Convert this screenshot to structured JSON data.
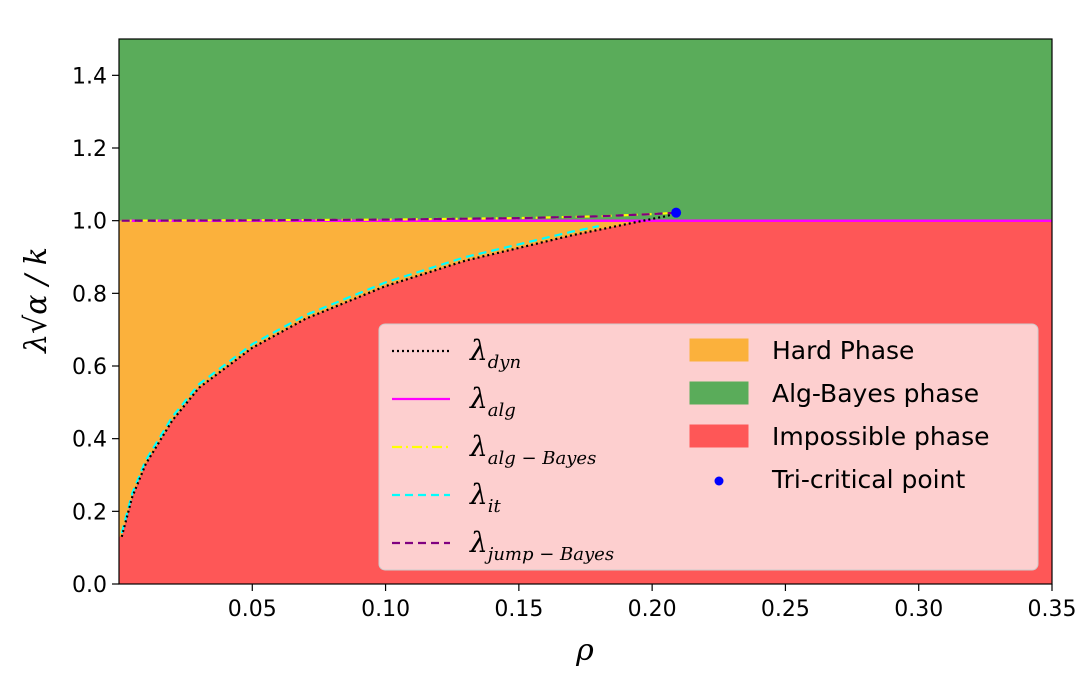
{
  "chart_data": {
    "type": "area",
    "xlabel": "ρ",
    "ylabel": "λ√α / k",
    "xlim": [
      0.0,
      0.35
    ],
    "ylim": [
      0.0,
      1.5
    ],
    "x_ticks": [
      "0.05",
      "0.10",
      "0.15",
      "0.20",
      "0.25",
      "0.30",
      "0.35"
    ],
    "y_ticks": [
      "0.0",
      "0.2",
      "0.4",
      "0.6",
      "0.8",
      "1.0",
      "1.2",
      "1.4"
    ],
    "legend_position": "lower-right",
    "regions": [
      {
        "name": "Hard Phase",
        "color": "#fbb13c"
      },
      {
        "name": "Alg-Bayes phase",
        "color": "#5aac5a"
      },
      {
        "name": "Impossible phase",
        "color": "#fe5757"
      }
    ],
    "series": [
      {
        "name": "λ",
        "subscript": "dyn",
        "style": "dotted",
        "color": "#000000",
        "x": [
          0.001,
          0.005,
          0.01,
          0.02,
          0.03,
          0.05,
          0.07,
          0.1,
          0.13,
          0.15,
          0.17,
          0.19,
          0.2,
          0.205,
          0.209
        ],
        "y": [
          0.13,
          0.24,
          0.33,
          0.45,
          0.54,
          0.65,
          0.73,
          0.82,
          0.89,
          0.925,
          0.96,
          0.99,
          1.005,
          1.012,
          1.02
        ]
      },
      {
        "name": "λ",
        "subscript": "alg",
        "style": "solid",
        "color": "#ff00ff",
        "x": [
          0.001,
          0.35
        ],
        "y": [
          1.0,
          1.0
        ]
      },
      {
        "name": "λ",
        "subscript": "alg − Bayes",
        "style": "dashdot",
        "color": "#ffff00",
        "x": [
          0.001,
          0.05,
          0.1,
          0.15,
          0.18,
          0.2,
          0.209
        ],
        "y": [
          1.0,
          1.001,
          1.003,
          1.007,
          1.012,
          1.018,
          1.022
        ]
      },
      {
        "name": "λ",
        "subscript": "it",
        "style": "dashed",
        "color": "#00ffff",
        "x": [
          0.001,
          0.005,
          0.01,
          0.02,
          0.03,
          0.05,
          0.07,
          0.1,
          0.13,
          0.15,
          0.17,
          0.18
        ],
        "y": [
          0.14,
          0.25,
          0.34,
          0.46,
          0.55,
          0.66,
          0.74,
          0.83,
          0.9,
          0.935,
          0.97,
          0.985
        ]
      },
      {
        "name": "λ",
        "subscript": "jump − Bayes",
        "style": "dashed",
        "color": "#800080",
        "x": [
          0.001,
          0.05,
          0.1,
          0.15,
          0.18,
          0.2,
          0.209
        ],
        "y": [
          1.0,
          1.001,
          1.003,
          1.007,
          1.012,
          1.018,
          1.022
        ]
      }
    ],
    "points": [
      {
        "name": "Tri-critical point",
        "x": 0.209,
        "y": 1.022,
        "color": "#0000ff"
      }
    ]
  }
}
